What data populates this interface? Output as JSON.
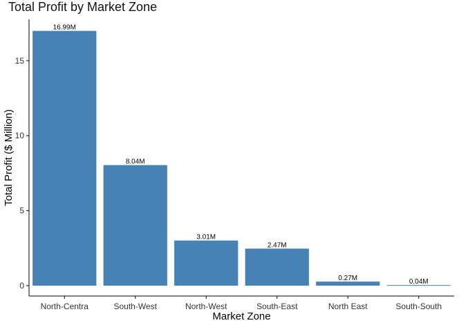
{
  "chart_data": {
    "type": "bar",
    "title": "Total Profit by Market Zone",
    "xlabel": "Market Zone",
    "ylabel": "Total Profit ($ Million)",
    "categories": [
      "North-Centra",
      "South-West",
      "North-West",
      "South-East",
      "North East",
      "South-South"
    ],
    "values": [
      16.99,
      8.04,
      3.01,
      2.47,
      0.27,
      0.04
    ],
    "data_labels": [
      "16.99M",
      "8.04M",
      "3.01M",
      "2.47M",
      "0.27M",
      "0.04M"
    ],
    "yticks": [
      0,
      5,
      10,
      15
    ],
    "ylim": [
      0,
      17.8
    ],
    "grid": false,
    "legend": "none",
    "colors": {
      "bar": "#4682b4",
      "axis": "#000000",
      "text": "#333333"
    }
  }
}
